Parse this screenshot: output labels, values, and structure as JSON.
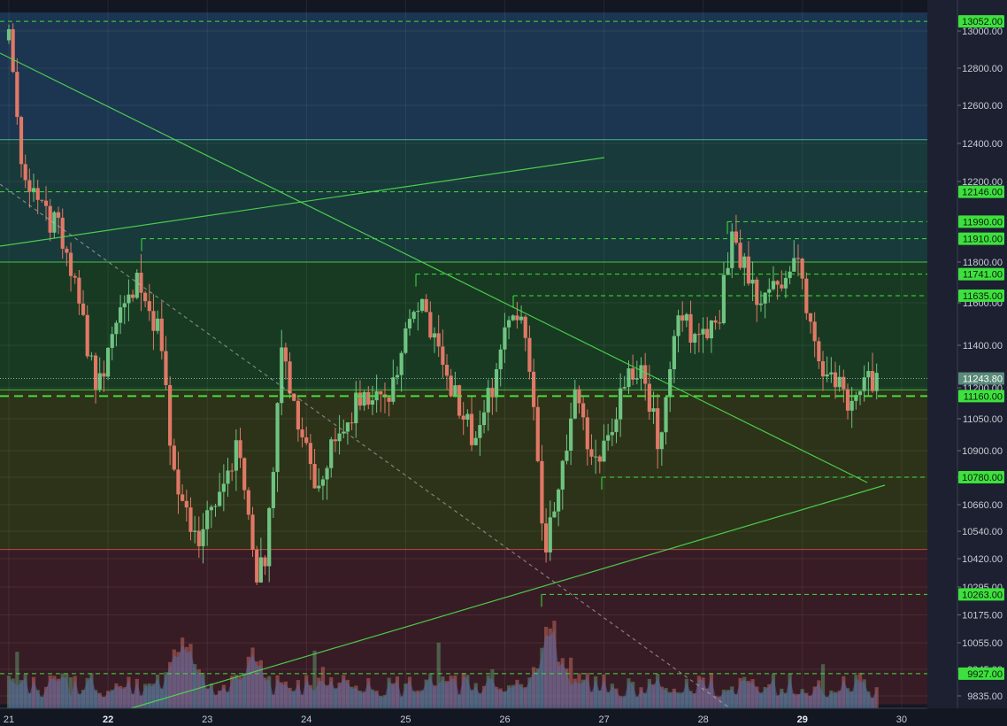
{
  "chart_data": {
    "type": "candlestick",
    "title": "",
    "x_tick_labels": [
      "21",
      "22",
      "23",
      "24",
      "25",
      "26",
      "27",
      "28",
      "29",
      "30"
    ],
    "x_tick_bold": [
      "22",
      "29"
    ],
    "y_tick_labels": [
      13000,
      12800,
      12600,
      12400,
      12200,
      11800,
      11600,
      11400,
      11200,
      11050,
      10900,
      10780,
      10660,
      10540,
      10420,
      10295,
      10175,
      10055,
      9945,
      9835
    ],
    "ylim": [
      9800,
      13100
    ],
    "current_price": "11243.80",
    "levels": [
      {
        "label": "13052.00",
        "value": 13052
      },
      {
        "label": "12146.00",
        "value": 12146
      },
      {
        "label": "11990.00",
        "value": 11990
      },
      {
        "label": "11910.00",
        "value": 11910
      },
      {
        "label": "11741.00",
        "value": 11741
      },
      {
        "label": "11635.00",
        "value": 11635
      },
      {
        "label": "11160.00",
        "value": 11160
      },
      {
        "label": "10780.00",
        "value": 10780
      },
      {
        "label": "10263.00",
        "value": 10263
      },
      {
        "label": "9927.00",
        "value": 9927
      }
    ],
    "zones": [
      {
        "name": "blue",
        "from": 12420,
        "to": 13100,
        "color": "#1c3550"
      },
      {
        "name": "teal",
        "from": 11800,
        "to": 12420,
        "color": "#183a3a"
      },
      {
        "name": "green",
        "from": 11190,
        "to": 11800,
        "color": "#183a22"
      },
      {
        "name": "olive",
        "from": 10460,
        "to": 11190,
        "color": "#2c3319"
      },
      {
        "name": "red",
        "from": 9800,
        "to": 10460,
        "color": "#381c25"
      }
    ],
    "solid_levels": [
      12420,
      11800,
      11190,
      10460
    ],
    "series_keypoints": [
      {
        "x": 21.0,
        "price": 12950
      },
      {
        "x": 21.1,
        "price": 12400
      },
      {
        "x": 21.25,
        "price": 12100
      },
      {
        "x": 21.5,
        "price": 11950
      },
      {
        "x": 21.7,
        "price": 11600
      },
      {
        "x": 21.9,
        "price": 11200
      },
      {
        "x": 22.1,
        "price": 11550
      },
      {
        "x": 22.35,
        "price": 11720
      },
      {
        "x": 22.55,
        "price": 11380
      },
      {
        "x": 22.65,
        "price": 10800
      },
      {
        "x": 22.9,
        "price": 10500
      },
      {
        "x": 23.1,
        "price": 10650
      },
      {
        "x": 23.3,
        "price": 10900
      },
      {
        "x": 23.5,
        "price": 10300
      },
      {
        "x": 23.6,
        "price": 10450
      },
      {
        "x": 23.75,
        "price": 11350
      },
      {
        "x": 23.9,
        "price": 11050
      },
      {
        "x": 24.1,
        "price": 10700
      },
      {
        "x": 24.3,
        "price": 10950
      },
      {
        "x": 24.6,
        "price": 11200
      },
      {
        "x": 24.8,
        "price": 11100
      },
      {
        "x": 25.1,
        "price": 11650
      },
      {
        "x": 25.3,
        "price": 11400
      },
      {
        "x": 25.5,
        "price": 11150
      },
      {
        "x": 25.7,
        "price": 10950
      },
      {
        "x": 25.9,
        "price": 11250
      },
      {
        "x": 26.1,
        "price": 11600
      },
      {
        "x": 26.25,
        "price": 11300
      },
      {
        "x": 26.4,
        "price": 10450
      },
      {
        "x": 26.55,
        "price": 10700
      },
      {
        "x": 26.7,
        "price": 11150
      },
      {
        "x": 26.95,
        "price": 10800
      },
      {
        "x": 27.15,
        "price": 11150
      },
      {
        "x": 27.35,
        "price": 11300
      },
      {
        "x": 27.55,
        "price": 10950
      },
      {
        "x": 27.75,
        "price": 11500
      },
      {
        "x": 27.95,
        "price": 11450
      },
      {
        "x": 28.15,
        "price": 11500
      },
      {
        "x": 28.3,
        "price": 11950
      },
      {
        "x": 28.5,
        "price": 11650
      },
      {
        "x": 28.8,
        "price": 11700
      },
      {
        "x": 28.95,
        "price": 11780
      },
      {
        "x": 29.1,
        "price": 11400
      },
      {
        "x": 29.3,
        "price": 11250
      },
      {
        "x": 29.5,
        "price": 11120
      },
      {
        "x": 29.7,
        "price": 11250
      },
      {
        "x": 29.8,
        "price": 11200
      }
    ],
    "colors": {
      "up": "#6fc381",
      "down": "#e07866",
      "level": "#3ee03e",
      "level_label_bg": "#3ee03e",
      "price_label_bg": "#5a8a7a",
      "axis_bg": "#131722",
      "volume_fill": "#5a6aa8"
    }
  }
}
